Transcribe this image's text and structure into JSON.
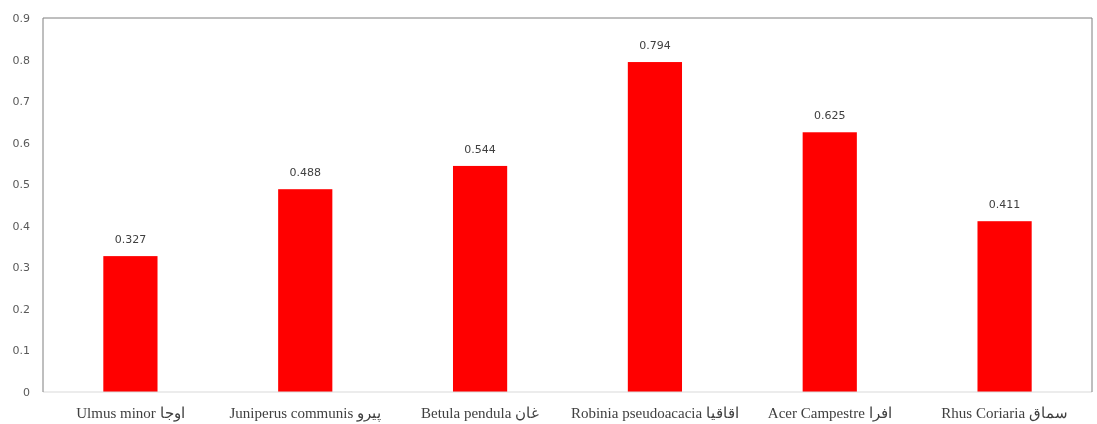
{
  "chart_data": {
    "type": "bar",
    "categories": [
      "Ulmus minor اوجا",
      "Juniperus communis پیرو",
      "Betula pendula غان",
      "Robinia pseudoacacia اقاقیا",
      "Acer Campestre افرا",
      "Rhus Coriaria سماق"
    ],
    "values": [
      0.327,
      0.488,
      0.544,
      0.794,
      0.625,
      0.411
    ],
    "color": "#ff0000",
    "ylim": [
      0,
      0.9
    ],
    "yticks": [
      0,
      0.1,
      0.2,
      0.3,
      0.4,
      0.5,
      0.6,
      0.7,
      0.8,
      0.9
    ],
    "data_labels": true
  }
}
